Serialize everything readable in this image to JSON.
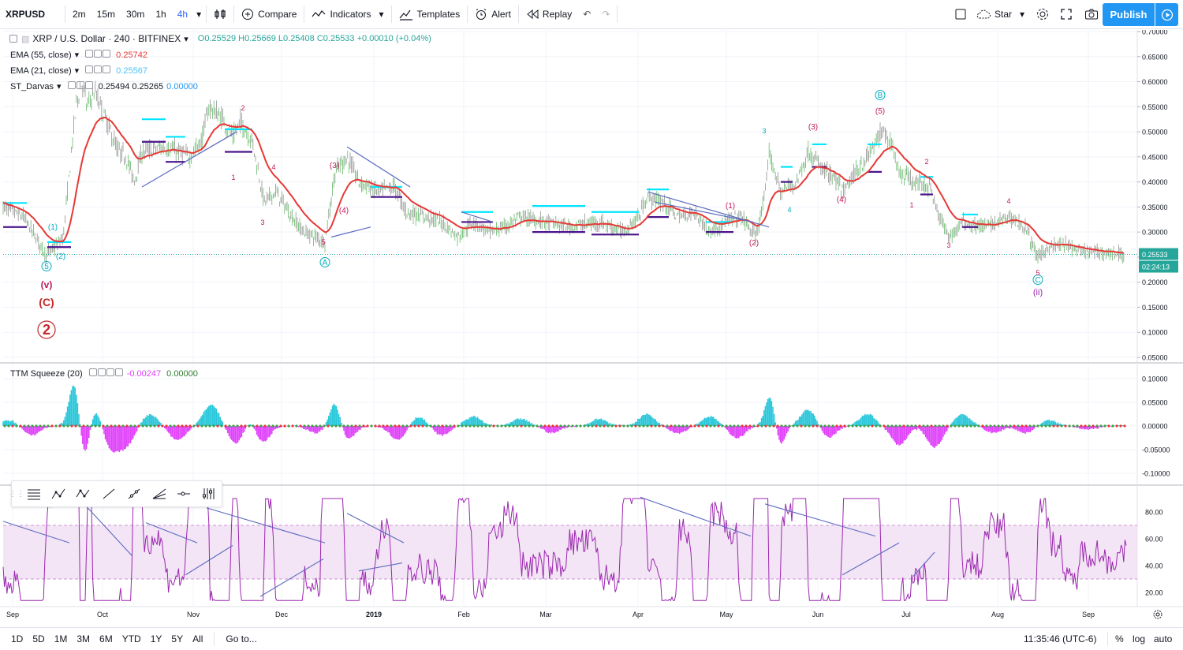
{
  "toolbar": {
    "symbol": "XRPUSD",
    "intervals": [
      "2m",
      "15m",
      "30m",
      "1h",
      "4h"
    ],
    "active_interval": "4h",
    "compare_label": "Compare",
    "indicators_label": "Indicators",
    "templates_label": "Templates",
    "alert_label": "Alert",
    "replay_label": "Replay",
    "star_label": "Star",
    "publish_label": "Publish"
  },
  "legend": {
    "title": "XRP / U.S. Dollar · 240 · BITFINEX",
    "ohlc": "O0.25529 H0.25669 L0.25408 C0.25533 +0.00010 (+0.04%)",
    "ema55_label": "EMA (55, close)",
    "ema55_value": "0.25742",
    "ema21_label": "EMA (21, close)",
    "ema21_value": "0.25567",
    "darvas_label": "ST_Darvas",
    "darvas_values": "0.25494  0.25265",
    "darvas_value3": "0.00000",
    "ttm_label": "TTM Squeeze (20)",
    "ttm_value1": "-0.00247",
    "ttm_value2": "0.00000"
  },
  "price_axis": {
    "ticks": [
      "0.70000",
      "0.65000",
      "0.60000",
      "0.55000",
      "0.50000",
      "0.45000",
      "0.40000",
      "0.35000",
      "0.30000",
      "0.25000",
      "0.20000",
      "0.15000",
      "0.10000",
      "0.05000"
    ],
    "current_price": "0.25533",
    "countdown": "02:24:13"
  },
  "ttm_axis": {
    "ticks": [
      "0.10000",
      "0.05000",
      "0.00000",
      "-0.05000",
      "-0.10000"
    ]
  },
  "rsi_axis": {
    "ticks": [
      "80.00",
      "60.00",
      "40.00",
      "20.00"
    ]
  },
  "time_axis": [
    "Sep",
    "Oct",
    "Nov",
    "Dec",
    "2019",
    "Feb",
    "Mar",
    "Apr",
    "May",
    "Jun",
    "Jul",
    "Aug",
    "Sep"
  ],
  "wave_labels": [
    {
      "text": "(v)",
      "color": "#c2185b"
    },
    {
      "text": "(C)",
      "color": "#c62828"
    },
    {
      "text": "2",
      "color": "#c62828"
    },
    {
      "text": "5",
      "color": "#00acc1"
    },
    {
      "text": "(1)",
      "color": "#00acc1"
    },
    {
      "text": "(2)",
      "color": "#00acc1"
    },
    {
      "text": "A",
      "color": "#00acc1"
    },
    {
      "text": "B",
      "color": "#00acc1"
    },
    {
      "text": "(5)",
      "color": "#c2185b"
    },
    {
      "text": "C",
      "color": "#00acc1"
    },
    {
      "text": "(ii)",
      "color": "#9c27b0"
    },
    {
      "text": "3",
      "color": "#00acc1"
    },
    {
      "text": "4",
      "color": "#00acc1"
    },
    {
      "text": "(3)",
      "color": "#c2185b"
    },
    {
      "text": "(4)",
      "color": "#c2185b"
    },
    {
      "text": "(1)",
      "color": "#c2185b"
    },
    {
      "text": "(2)",
      "color": "#c2185b"
    },
    {
      "text": "(3)",
      "color": "#c2185b"
    },
    {
      "text": "(4)",
      "color": "#c2185b"
    },
    {
      "text": "2",
      "color": "#c2185b"
    },
    {
      "text": "1",
      "color": "#c2185b"
    },
    {
      "text": "3",
      "color": "#c2185b"
    },
    {
      "text": "4",
      "color": "#c2185b"
    },
    {
      "text": "5",
      "color": "#c2185b"
    },
    {
      "text": "2",
      "color": "#c2185b"
    },
    {
      "text": "1",
      "color": "#c2185b"
    },
    {
      "text": "3",
      "color": "#c2185b"
    },
    {
      "text": "4",
      "color": "#c2185b"
    },
    {
      "text": "5",
      "color": "#c2185b"
    }
  ],
  "bottom": {
    "ranges": [
      "1D",
      "5D",
      "1M",
      "3M",
      "6M",
      "YTD",
      "1Y",
      "5Y",
      "All"
    ],
    "goto_label": "Go to...",
    "clock": "11:35:46 (UTC-6)",
    "percent_label": "%",
    "log_label": "log",
    "auto_label": "auto"
  },
  "colors": {
    "ema55": "#e53935",
    "ema21": "#4fc3f7",
    "candle_up": "#26a69a",
    "darvas_top": "#00e5ff",
    "darvas_bottom": "#4a148c",
    "trendline": "#3f51b5",
    "rsi_line": "#9c27b0",
    "rsi_band": "#f3e5f5",
    "ttm_pos": "#26c6da",
    "ttm_neg": "#e040fb"
  },
  "chart_data": {
    "type": "line",
    "title": "XRP / U.S. Dollar · 240 · BITFINEX",
    "xlabel": "",
    "ylabel": "",
    "categories": [
      "Sep",
      "Oct",
      "Nov",
      "Dec",
      "2019",
      "Feb",
      "Mar",
      "Apr",
      "May",
      "Jun",
      "Jul",
      "Aug",
      "Sep"
    ],
    "ylim": [
      0.05,
      0.7
    ],
    "series": [
      {
        "name": "XRP close",
        "values": [
          0.33,
          0.55,
          0.46,
          0.3,
          0.37,
          0.31,
          0.32,
          0.33,
          0.3,
          0.44,
          0.42,
          0.32,
          0.26
        ]
      },
      {
        "name": "EMA (55, close)",
        "values": [
          0.32,
          0.52,
          0.48,
          0.33,
          0.37,
          0.32,
          0.32,
          0.34,
          0.31,
          0.43,
          0.44,
          0.32,
          0.258
        ]
      }
    ],
    "panes": {
      "ttm_squeeze": {
        "ylim": [
          -0.1,
          0.1
        ]
      },
      "rsi": {
        "ylim": [
          10,
          90
        ],
        "band": [
          30,
          70
        ]
      }
    },
    "grid": true
  }
}
